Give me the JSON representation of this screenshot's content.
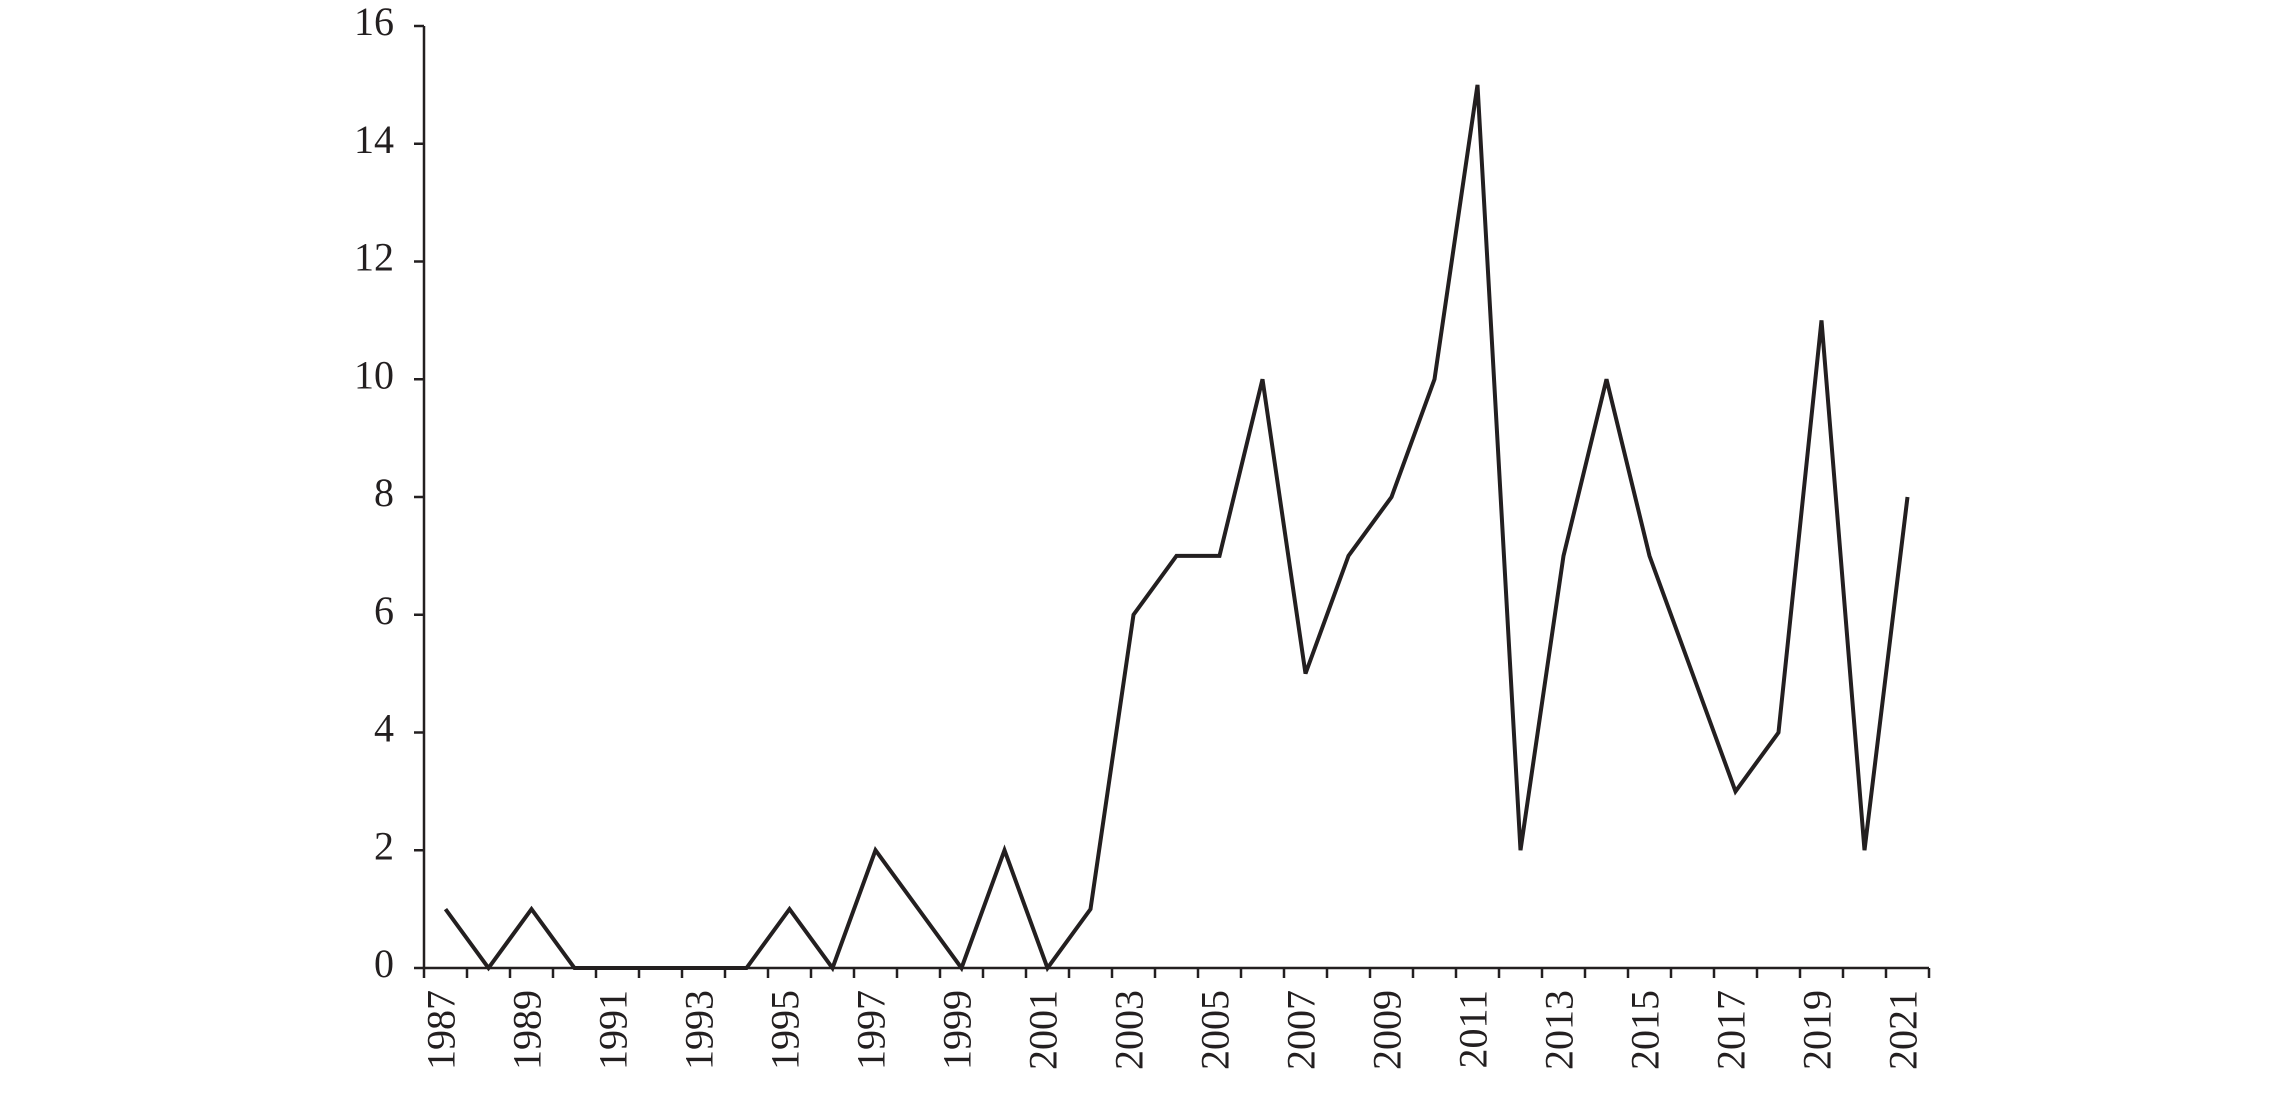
{
  "chart_data": {
    "type": "line",
    "categories": [
      "1987",
      null,
      "1989",
      null,
      "1991",
      null,
      "1993",
      null,
      "1995",
      null,
      "1997",
      null,
      "1999",
      null,
      "2001",
      null,
      "2003",
      null,
      "2005",
      null,
      "2007",
      null,
      "2009",
      null,
      "2011",
      null,
      "2013",
      null,
      "2015",
      null,
      "2017",
      null,
      "2019",
      null,
      "2021"
    ],
    "values": [
      1,
      0,
      1,
      0,
      0,
      0,
      0,
      0,
      1,
      0,
      2,
      1,
      0,
      2,
      0,
      1,
      6,
      7,
      7,
      10,
      5,
      7,
      8,
      10,
      15,
      2,
      7,
      10,
      7,
      5,
      3,
      4,
      11,
      2,
      8
    ],
    "color": "#231f20",
    "ylim": [
      0,
      16
    ],
    "yticks": [
      0,
      2,
      4,
      6,
      8,
      10,
      12,
      14,
      16
    ],
    "grid": false
  }
}
